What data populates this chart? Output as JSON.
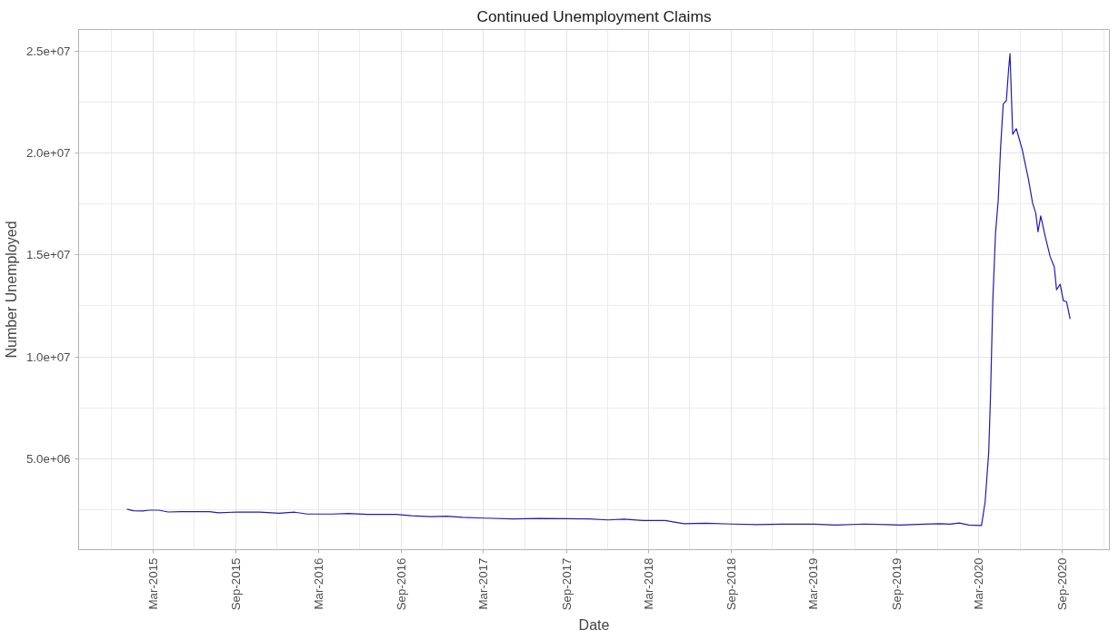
{
  "chart_data": {
    "type": "line",
    "title": "Continued Unemployment Claims",
    "xlabel": "Date",
    "ylabel": "Number Unemployed",
    "x": [
      "2015-01-03",
      "2015-01-17",
      "2015-02-07",
      "2015-02-21",
      "2015-03-14",
      "2015-04-04",
      "2015-05-02",
      "2015-06-06",
      "2015-07-04",
      "2015-07-25",
      "2015-09-05",
      "2015-10-24",
      "2015-12-05",
      "2016-01-09",
      "2016-02-06",
      "2016-04-02",
      "2016-05-07",
      "2016-06-18",
      "2016-08-20",
      "2016-09-24",
      "2016-11-05",
      "2016-12-10",
      "2017-01-14",
      "2017-03-04",
      "2017-05-06",
      "2017-07-01",
      "2017-09-02",
      "2017-10-21",
      "2017-12-02",
      "2018-01-06",
      "2018-02-17",
      "2018-04-07",
      "2018-05-19",
      "2018-07-07",
      "2018-09-01",
      "2018-10-27",
      "2018-12-22",
      "2019-03-02",
      "2019-04-20",
      "2019-06-22",
      "2019-08-10",
      "2019-09-07",
      "2019-10-19",
      "2019-12-07",
      "2019-12-28",
      "2020-01-18",
      "2020-02-08",
      "2020-03-07",
      "2020-03-15",
      "2020-03-23",
      "2020-03-27",
      "2020-04-01",
      "2020-04-07",
      "2020-04-13",
      "2020-04-18",
      "2020-04-24",
      "2020-05-01",
      "2020-05-06",
      "2020-05-09",
      "2020-05-15",
      "2020-05-23",
      "2020-06-05",
      "2020-06-19",
      "2020-06-28",
      "2020-07-05",
      "2020-07-10",
      "2020-07-16",
      "2020-07-26",
      "2020-08-06",
      "2020-08-15",
      "2020-08-20",
      "2020-08-28",
      "2020-09-04",
      "2020-09-11",
      "2020-09-19"
    ],
    "series": [
      {
        "color": "#1c1cb4",
        "values": [
          2520000,
          2440000,
          2430000,
          2470000,
          2470000,
          2380000,
          2400000,
          2400000,
          2400000,
          2340000,
          2380000,
          2370000,
          2320000,
          2370000,
          2280000,
          2280000,
          2310000,
          2260000,
          2260000,
          2200000,
          2150000,
          2170000,
          2120000,
          2080000,
          2040000,
          2060000,
          2050000,
          2040000,
          1990000,
          2030000,
          1960000,
          1960000,
          1810000,
          1830000,
          1790000,
          1760000,
          1780000,
          1780000,
          1740000,
          1790000,
          1760000,
          1740000,
          1770000,
          1810000,
          1780000,
          1840000,
          1740000,
          1720000,
          2870000,
          5340000,
          8150000,
          12760000,
          16060000,
          17700000,
          20180000,
          22410000,
          22580000,
          24140000,
          24880000,
          20930000,
          21200000,
          20180000,
          18700000,
          17550000,
          17050000,
          16140000,
          16920000,
          15900000,
          14910000,
          14410000,
          13290000,
          13560000,
          12760000,
          12710000,
          11860000
        ]
      }
    ],
    "xlim": [
      "2014-09-18",
      "2020-12-15"
    ],
    "xticks": [
      {
        "value": "2015-03-01",
        "label": "Mar-2015"
      },
      {
        "value": "2015-09-01",
        "label": "Sep-2015"
      },
      {
        "value": "2016-03-01",
        "label": "Mar-2016"
      },
      {
        "value": "2016-09-01",
        "label": "Sep-2016"
      },
      {
        "value": "2017-03-01",
        "label": "Mar-2017"
      },
      {
        "value": "2017-09-01",
        "label": "Sep-2017"
      },
      {
        "value": "2018-03-01",
        "label": "Mar-2018"
      },
      {
        "value": "2018-09-01",
        "label": "Sep-2018"
      },
      {
        "value": "2019-03-01",
        "label": "Mar-2019"
      },
      {
        "value": "2019-09-01",
        "label": "Sep-2019"
      },
      {
        "value": "2020-03-01",
        "label": "Mar-2020"
      },
      {
        "value": "2020-09-01",
        "label": "Sep-2020"
      }
    ],
    "ylim": [
      530000,
      26070000
    ],
    "yticks": [
      {
        "value": 5000000,
        "label": "5.0e+06"
      },
      {
        "value": 10000000,
        "label": "1.0e+07"
      },
      {
        "value": 15000000,
        "label": "1.5e+07"
      },
      {
        "value": 20000000,
        "label": "2.0e+07"
      },
      {
        "value": 25000000,
        "label": "2.5e+07"
      }
    ],
    "grid": true,
    "marker": "none",
    "line_style": "solid"
  }
}
